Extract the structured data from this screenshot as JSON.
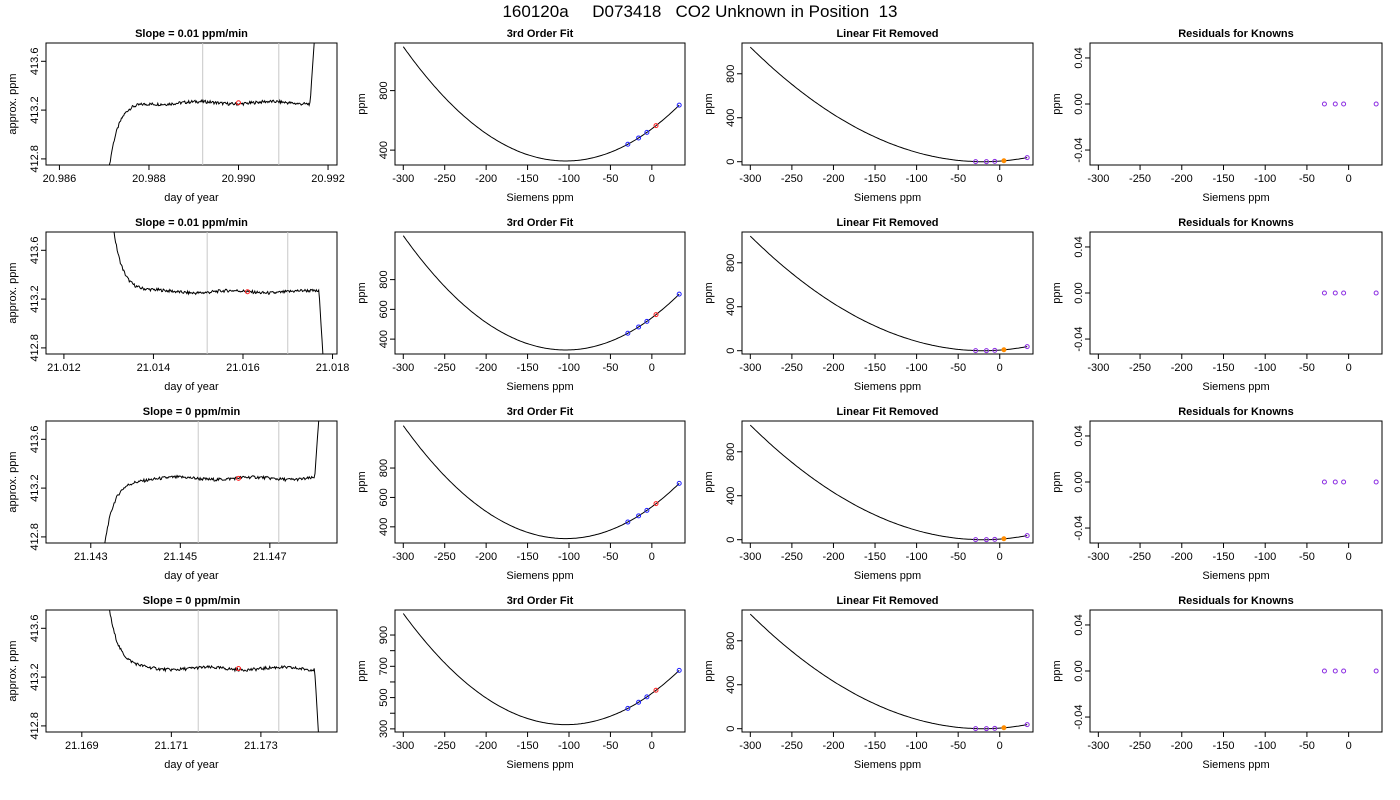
{
  "title": "160120a     D073418   CO2 Unknown in Position  13",
  "colors": {
    "line": "#000000",
    "marker_unknown": "#ff2020",
    "marker_known": "#2020ff",
    "marker_residual": "#8a2be2",
    "marker_linear_unknown": "#ff8c00",
    "vline": "#c8c8c8"
  },
  "chart_data": [
    {
      "type": "line",
      "panel": "time-series",
      "row": 1,
      "title": "Slope =  0.01  ppm/min",
      "xlabel": "day of year",
      "ylabel": "approx. ppm",
      "xlim": [
        20.9857,
        20.9922
      ],
      "ylim": [
        412.75,
        413.75
      ],
      "xticks": [
        20.986,
        20.988,
        20.99,
        20.992
      ],
      "xtick_labels": [
        "20.986",
        "20.988",
        "20.990",
        "20.992"
      ],
      "yticks": [
        412.8,
        413.2,
        413.6
      ],
      "ytick_labels": [
        "412.8",
        "413.2",
        "413.6"
      ],
      "trace": {
        "start": 20.9871,
        "end": 20.9917,
        "plateau": 413.26,
        "rise_from": 412.7,
        "jump_at": 20.9916,
        "jump_to": 413.8,
        "mode": "rise"
      },
      "vlines": [
        20.9892,
        20.9909
      ],
      "marker": {
        "x": 20.99,
        "y": 413.26
      }
    },
    {
      "type": "line",
      "panel": "cubic-fit",
      "row": 1,
      "title": "3rd Order Fit",
      "xlabel": "Siemens ppm",
      "ylabel": "ppm",
      "xlim": [
        -310,
        40
      ],
      "ylim": [
        300,
        1120
      ],
      "xticks": [
        -300,
        -250,
        -200,
        -150,
        -100,
        -50,
        0
      ],
      "xtick_labels": [
        "-300",
        "-250",
        "-200",
        "-150",
        "-100",
        "-50",
        "0"
      ],
      "yticks": [
        400,
        800
      ],
      "ytick_labels": [
        "400",
        "800"
      ],
      "curve": {
        "x0": -300,
        "x1": 33,
        "vertex_x": -104,
        "vertex_y": 327,
        "a": 0.02
      },
      "knowns": [
        -29,
        -16,
        -6,
        33
      ],
      "unknown": [
        5
      ]
    },
    {
      "type": "line",
      "panel": "linear-removed",
      "row": 1,
      "title": "Linear Fit Removed",
      "xlabel": "Siemens ppm",
      "ylabel": "ppm",
      "xlim": [
        -310,
        40
      ],
      "ylim": [
        -30,
        1080
      ],
      "xticks": [
        -300,
        -250,
        -200,
        -150,
        -100,
        -50,
        0
      ],
      "xtick_labels": [
        "-300",
        "-250",
        "-200",
        "-150",
        "-100",
        "-50",
        "0"
      ],
      "yticks": [
        0,
        400,
        800
      ],
      "ytick_labels": [
        "0",
        "400",
        "800"
      ],
      "curve": {
        "x0": -300,
        "x1": 33,
        "vertex_x": -20,
        "vertex_y": 0,
        "a": 0.0133
      },
      "knowns": [
        -29,
        -16,
        -6,
        33
      ],
      "unknown": [
        5
      ]
    },
    {
      "type": "scatter",
      "panel": "residuals",
      "row": 1,
      "title": "Residuals for Knowns",
      "xlabel": "Siemens ppm",
      "ylabel": "ppm",
      "xlim": [
        -310,
        40
      ],
      "ylim": [
        -0.053,
        0.053
      ],
      "xticks": [
        -300,
        -250,
        -200,
        -150,
        -100,
        -50,
        0
      ],
      "xtick_labels": [
        "-300",
        "-250",
        "-200",
        "-150",
        "-100",
        "-50",
        "0"
      ],
      "yticks": [
        -0.04,
        0.0,
        0.04
      ],
      "ytick_labels": [
        "-0.04",
        "0.00",
        "0.04"
      ],
      "points": [
        {
          "x": -29,
          "y": 0
        },
        {
          "x": -16,
          "y": 0
        },
        {
          "x": -6,
          "y": 0
        },
        {
          "x": 33,
          "y": 0
        }
      ]
    },
    {
      "type": "line",
      "panel": "time-series",
      "row": 2,
      "title": "Slope =  0.01  ppm/min",
      "xlabel": "day of year",
      "ylabel": "approx. ppm",
      "xlim": [
        21.0116,
        21.0181
      ],
      "ylim": [
        412.75,
        413.75
      ],
      "xticks": [
        21.012,
        21.014,
        21.016,
        21.018
      ],
      "xtick_labels": [
        "21.012",
        "21.014",
        "21.016",
        "21.018"
      ],
      "yticks": [
        412.8,
        413.2,
        413.6
      ],
      "ytick_labels": [
        "412.8",
        "413.2",
        "413.6"
      ],
      "trace": {
        "start": 21.0131,
        "end": 21.0178,
        "plateau": 413.26,
        "rise_from": 413.8,
        "jump_at": 21.0177,
        "jump_to": 412.65,
        "mode": "fall"
      },
      "vlines": [
        21.0152,
        21.017
      ],
      "marker": {
        "x": 21.0161,
        "y": 413.26
      }
    },
    {
      "type": "line",
      "panel": "cubic-fit",
      "row": 2,
      "title": "3rd Order Fit",
      "xlabel": "Siemens ppm",
      "ylabel": "ppm",
      "xlim": [
        -310,
        40
      ],
      "ylim": [
        300,
        1120
      ],
      "xticks": [
        -300,
        -250,
        -200,
        -150,
        -100,
        -50,
        0
      ],
      "xtick_labels": [
        "-300",
        "-250",
        "-200",
        "-150",
        "-100",
        "-50",
        "0"
      ],
      "yticks": [
        400,
        600,
        800
      ],
      "ytick_labels": [
        "400",
        "600",
        "800"
      ],
      "curve": {
        "x0": -300,
        "x1": 33,
        "vertex_x": -104,
        "vertex_y": 327,
        "a": 0.02
      },
      "knowns": [
        -29,
        -16,
        -6,
        33
      ],
      "unknown": [
        5
      ]
    },
    {
      "type": "line",
      "panel": "linear-removed",
      "row": 2,
      "title": "Linear Fit Removed",
      "xlabel": "Siemens ppm",
      "ylabel": "ppm",
      "xlim": [
        -310,
        40
      ],
      "ylim": [
        -30,
        1080
      ],
      "xticks": [
        -300,
        -250,
        -200,
        -150,
        -100,
        -50,
        0
      ],
      "xtick_labels": [
        "-300",
        "-250",
        "-200",
        "-150",
        "-100",
        "-50",
        "0"
      ],
      "yticks": [
        0,
        400,
        800
      ],
      "ytick_labels": [
        "0",
        "400",
        "800"
      ],
      "curve": {
        "x0": -300,
        "x1": 33,
        "vertex_x": -20,
        "vertex_y": 0,
        "a": 0.0133
      },
      "knowns": [
        -29,
        -16,
        -6,
        33
      ],
      "unknown": [
        5
      ]
    },
    {
      "type": "scatter",
      "panel": "residuals",
      "row": 2,
      "title": "Residuals for Knowns",
      "xlabel": "Siemens ppm",
      "ylabel": "ppm",
      "xlim": [
        -310,
        40
      ],
      "ylim": [
        -0.053,
        0.053
      ],
      "xticks": [
        -300,
        -250,
        -200,
        -150,
        -100,
        -50,
        0
      ],
      "xtick_labels": [
        "-300",
        "-250",
        "-200",
        "-150",
        "-100",
        "-50",
        "0"
      ],
      "yticks": [
        -0.04,
        0.0,
        0.04
      ],
      "ytick_labels": [
        "-0.04",
        "0.00",
        "0.04"
      ],
      "points": [
        {
          "x": -29,
          "y": 0
        },
        {
          "x": -16,
          "y": 0
        },
        {
          "x": -6,
          "y": 0
        },
        {
          "x": 33,
          "y": 0
        }
      ]
    },
    {
      "type": "line",
      "panel": "time-series",
      "row": 3,
      "title": "Slope =  0  ppm/min",
      "xlabel": "day of year",
      "ylabel": "approx. ppm",
      "xlim": [
        21.142,
        21.1485
      ],
      "ylim": [
        412.75,
        413.75
      ],
      "xticks": [
        21.143,
        21.145,
        21.147
      ],
      "xtick_labels": [
        "21.143",
        "21.145",
        "21.147"
      ],
      "yticks": [
        412.8,
        413.2,
        413.6
      ],
      "ytick_labels": [
        "412.8",
        "413.2",
        "413.6"
      ],
      "trace": {
        "start": 21.1433,
        "end": 21.1481,
        "plateau": 413.28,
        "rise_from": 412.7,
        "jump_at": 21.148,
        "jump_to": 413.8,
        "mode": "rise"
      },
      "vlines": [
        21.1454,
        21.1472
      ],
      "marker": {
        "x": 21.1463,
        "y": 413.28
      }
    },
    {
      "type": "line",
      "panel": "cubic-fit",
      "row": 3,
      "title": "3rd Order Fit",
      "xlabel": "Siemens ppm",
      "ylabel": "ppm",
      "xlim": [
        -310,
        40
      ],
      "ylim": [
        290,
        1120
      ],
      "xticks": [
        -300,
        -250,
        -200,
        -150,
        -100,
        -50,
        0
      ],
      "xtick_labels": [
        "-300",
        "-250",
        "-200",
        "-150",
        "-100",
        "-50",
        "0"
      ],
      "yticks": [
        400,
        600,
        800
      ],
      "ytick_labels": [
        "400",
        "600",
        "800"
      ],
      "curve": {
        "x0": -300,
        "x1": 33,
        "vertex_x": -104,
        "vertex_y": 320,
        "a": 0.02
      },
      "knowns": [
        -29,
        -16,
        -6,
        33
      ],
      "unknown": [
        5
      ]
    },
    {
      "type": "line",
      "panel": "linear-removed",
      "row": 3,
      "title": "Linear Fit Removed",
      "xlabel": "Siemens ppm",
      "ylabel": "ppm",
      "xlim": [
        -310,
        40
      ],
      "ylim": [
        -30,
        1080
      ],
      "xticks": [
        -300,
        -250,
        -200,
        -150,
        -100,
        -50,
        0
      ],
      "xtick_labels": [
        "-300",
        "-250",
        "-200",
        "-150",
        "-100",
        "-50",
        "0"
      ],
      "yticks": [
        0,
        400,
        800
      ],
      "ytick_labels": [
        "0",
        "400",
        "800"
      ],
      "curve": {
        "x0": -300,
        "x1": 33,
        "vertex_x": -20,
        "vertex_y": 0,
        "a": 0.0133
      },
      "knowns": [
        -29,
        -16,
        -6,
        33
      ],
      "unknown": [
        5
      ]
    },
    {
      "type": "scatter",
      "panel": "residuals",
      "row": 3,
      "title": "Residuals for Knowns",
      "xlabel": "Siemens ppm",
      "ylabel": "ppm",
      "xlim": [
        -310,
        40
      ],
      "ylim": [
        -0.053,
        0.053
      ],
      "xticks": [
        -300,
        -250,
        -200,
        -150,
        -100,
        -50,
        0
      ],
      "xtick_labels": [
        "-300",
        "-250",
        "-200",
        "-150",
        "-100",
        "-50",
        "0"
      ],
      "yticks": [
        -0.04,
        0.0,
        0.04
      ],
      "ytick_labels": [
        "-0.04",
        "0.00",
        "0.04"
      ],
      "points": [
        {
          "x": -29,
          "y": 0
        },
        {
          "x": -16,
          "y": 0
        },
        {
          "x": -6,
          "y": 0
        },
        {
          "x": 33,
          "y": 0
        }
      ]
    },
    {
      "type": "line",
      "panel": "time-series",
      "row": 4,
      "title": "Slope =  0  ppm/min",
      "xlabel": "day of year",
      "ylabel": "approx. ppm",
      "xlim": [
        21.1682,
        21.1747
      ],
      "ylim": [
        412.75,
        413.75
      ],
      "xticks": [
        21.169,
        21.171,
        21.173
      ],
      "xtick_labels": [
        "21.169",
        "21.171",
        "21.173"
      ],
      "yticks": [
        412.8,
        413.2,
        413.6
      ],
      "ytick_labels": [
        "412.8",
        "413.2",
        "413.6"
      ],
      "trace": {
        "start": 21.1696,
        "end": 21.1743,
        "plateau": 413.27,
        "rise_from": 413.8,
        "jump_at": 21.1742,
        "jump_to": 412.65,
        "mode": "fall"
      },
      "vlines": [
        21.1716,
        21.1734
      ],
      "marker": {
        "x": 21.1725,
        "y": 413.27
      }
    },
    {
      "type": "line",
      "panel": "cubic-fit",
      "row": 4,
      "title": "3rd Order Fit",
      "xlabel": "Siemens ppm",
      "ylabel": "ppm",
      "xlim": [
        -310,
        40
      ],
      "ylim": [
        280,
        1060
      ],
      "xticks": [
        -300,
        -250,
        -200,
        -150,
        -100,
        -50,
        0
      ],
      "xtick_labels": [
        "-300",
        "-250",
        "-200",
        "-150",
        "-100",
        "-50",
        "0"
      ],
      "yticks": [
        300,
        400,
        500,
        600,
        700,
        800,
        900
      ],
      "ytick_labels": [
        "300",
        "",
        "500",
        "",
        "700",
        "",
        "900"
      ],
      "curve": {
        "x0": -300,
        "x1": 33,
        "vertex_x": -104,
        "vertex_y": 327,
        "a": 0.0185
      },
      "knowns": [
        -29,
        -16,
        -6,
        33
      ],
      "unknown": [
        5
      ]
    },
    {
      "type": "line",
      "panel": "linear-removed",
      "row": 4,
      "title": "Linear Fit Removed",
      "xlabel": "Siemens ppm",
      "ylabel": "ppm",
      "xlim": [
        -310,
        40
      ],
      "ylim": [
        -30,
        1080
      ],
      "xticks": [
        -300,
        -250,
        -200,
        -150,
        -100,
        -50,
        0
      ],
      "xtick_labels": [
        "-300",
        "-250",
        "-200",
        "-150",
        "-100",
        "-50",
        "0"
      ],
      "yticks": [
        0,
        400,
        800
      ],
      "ytick_labels": [
        "0",
        "400",
        "800"
      ],
      "curve": {
        "x0": -300,
        "x1": 33,
        "vertex_x": -20,
        "vertex_y": 0,
        "a": 0.0133
      },
      "knowns": [
        -29,
        -16,
        -6,
        33
      ],
      "unknown": [
        5
      ]
    },
    {
      "type": "scatter",
      "panel": "residuals",
      "row": 4,
      "title": "Residuals for Knowns",
      "xlabel": "Siemens ppm",
      "ylabel": "ppm",
      "xlim": [
        -310,
        40
      ],
      "ylim": [
        -0.053,
        0.053
      ],
      "xticks": [
        -300,
        -250,
        -200,
        -150,
        -100,
        -50,
        0
      ],
      "xtick_labels": [
        "-300",
        "-250",
        "-200",
        "-150",
        "-100",
        "-50",
        "0"
      ],
      "yticks": [
        -0.04,
        0.0,
        0.04
      ],
      "ytick_labels": [
        "-0.04",
        "0.00",
        "0.04"
      ],
      "points": [
        {
          "x": -29,
          "y": 0
        },
        {
          "x": -16,
          "y": 0
        },
        {
          "x": -6,
          "y": 0
        },
        {
          "x": 33,
          "y": 0
        }
      ]
    }
  ]
}
